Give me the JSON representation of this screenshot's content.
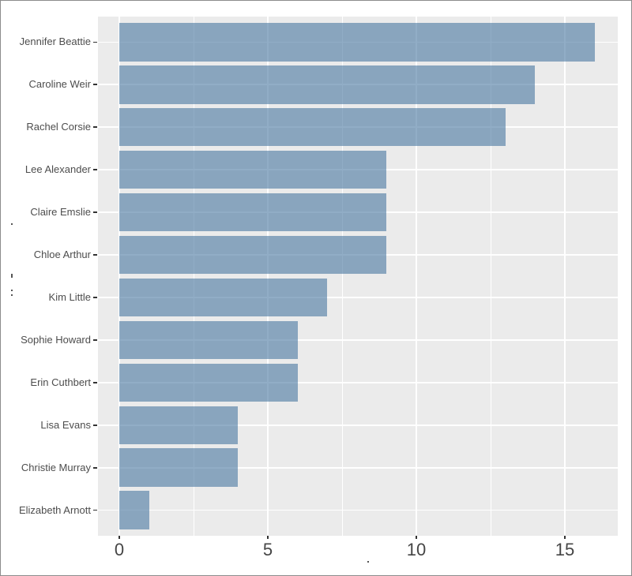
{
  "chart_data": {
    "type": "bar",
    "orientation": "horizontal",
    "categories": [
      "Jennifer Beattie",
      "Caroline Weir",
      "Rachel Corsie",
      "Lee Alexander",
      "Claire Emslie",
      "Chloe Arthur",
      "Kim Little",
      "Sophie Howard",
      "Erin Cuthbert",
      "Lisa Evans",
      "Christie Murray",
      "Elizabeth Arnott"
    ],
    "values": [
      16,
      14,
      13,
      9,
      9,
      9,
      7,
      6,
      6,
      4,
      4,
      1
    ],
    "title": "",
    "xlabel": ".",
    "ylabel": ". :",
    "xlim": [
      -0.8,
      16.8
    ],
    "x_ticks": [
      0,
      5,
      10,
      15
    ],
    "x_minor_ticks": [
      2.5,
      7.5,
      12.5
    ],
    "grid": true,
    "legend": false
  },
  "style": {
    "panel_bg": "#EBEBEB",
    "grid_color": "#FFFFFF",
    "bar_fill_rgba": "rgba(72,118,160,0.6)",
    "axis_text_color": "#4D4D4D",
    "tick_color": "#333333",
    "border_color": "#8C8C8C",
    "background": "#FFFFFF"
  }
}
